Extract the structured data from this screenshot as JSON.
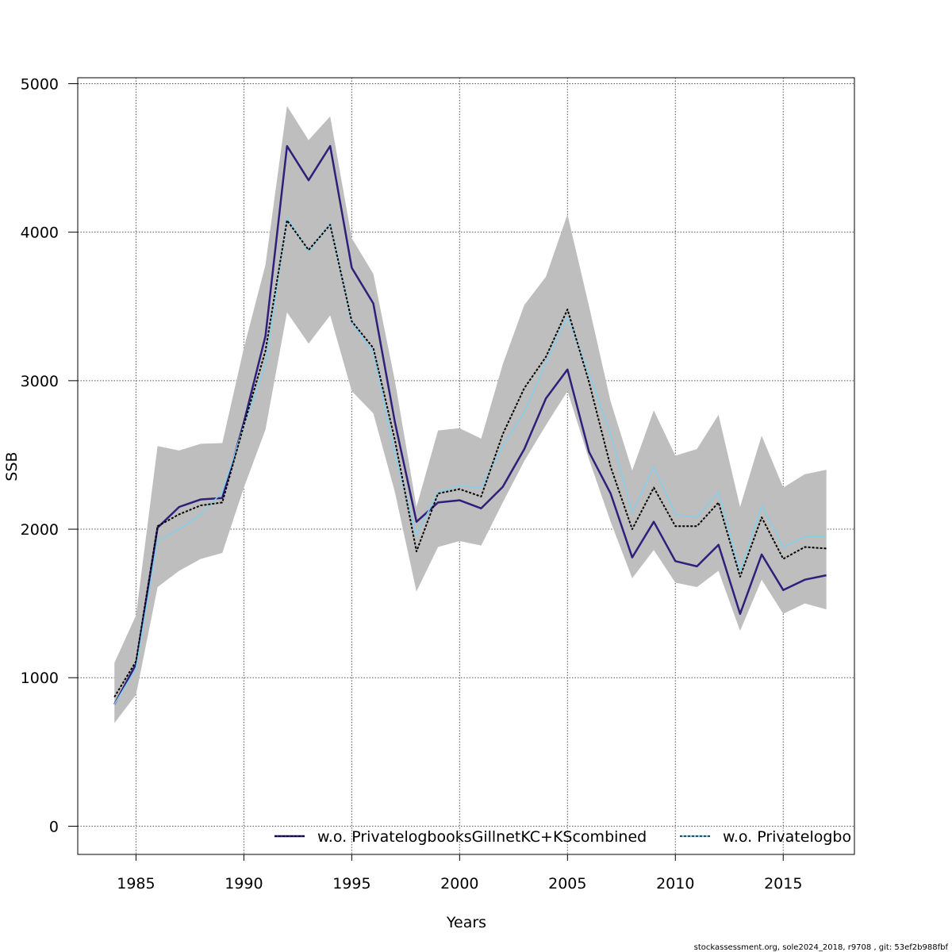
{
  "chart_data": {
    "type": "line",
    "xlabel": "Years",
    "ylabel": "SSB",
    "xlim": [
      1982.3,
      2018.3
    ],
    "ylim": [
      -190,
      5040
    ],
    "x_ticks": [
      1985,
      1990,
      1995,
      2000,
      2005,
      2010,
      2015
    ],
    "y_ticks": [
      0,
      1000,
      2000,
      3000,
      4000,
      5000
    ],
    "grid": true,
    "legend_position": "bottom-right",
    "x": [
      1984,
      1985,
      1986,
      1987,
      1988,
      1989,
      1990,
      1991,
      1992,
      1993,
      1994,
      1995,
      1996,
      1997,
      1998,
      1999,
      2000,
      2001,
      2002,
      2003,
      2004,
      2005,
      2006,
      2007,
      2008,
      2009,
      2010,
      2011,
      2012,
      2013,
      2014,
      2015,
      2016,
      2017
    ],
    "band": {
      "color": "#bebebe",
      "lower": [
        695,
        885,
        1610,
        1720,
        1800,
        1840,
        2280,
        2670,
        3460,
        3250,
        3440,
        2930,
        2780,
        2250,
        1580,
        1880,
        1920,
        1890,
        2180,
        2460,
        2700,
        2930,
        2470,
        2050,
        1670,
        1860,
        1640,
        1610,
        1720,
        1315,
        1660,
        1430,
        1500,
        1460
      ],
      "upper": [
        1100,
        1420,
        2560,
        2530,
        2575,
        2580,
        3220,
        3780,
        4850,
        4620,
        4780,
        3960,
        3720,
        3000,
        2150,
        2665,
        2680,
        2610,
        3110,
        3510,
        3700,
        4120,
        3500,
        2860,
        2395,
        2800,
        2495,
        2540,
        2770,
        2150,
        2630,
        2280,
        2370,
        2400
      ]
    },
    "series": [
      {
        "name": "w.o. PrivatelogbooksGillnetKC+KScombined",
        "color": "#2e1f7a",
        "values": [
          820,
          1090,
          2010,
          2150,
          2200,
          2210,
          2720,
          3300,
          4580,
          4350,
          4580,
          3760,
          3520,
          2720,
          2050,
          2180,
          2195,
          2140,
          2285,
          2540,
          2880,
          3075,
          2520,
          2240,
          1810,
          2050,
          1785,
          1750,
          1895,
          1430,
          1830,
          1590,
          1660,
          1690
        ]
      },
      {
        "name": "w.o. Privatelogbo",
        "color": "#87ceeb",
        "values": [
          820,
          1060,
          1920,
          2000,
          2100,
          2250,
          2700,
          3100,
          4100,
          3870,
          4060,
          3390,
          3190,
          2500,
          1960,
          2250,
          2290,
          2280,
          2560,
          2790,
          3120,
          3430,
          3050,
          2640,
          2110,
          2420,
          2100,
          2080,
          2250,
          1720,
          2160,
          1880,
          1950,
          1950
        ]
      },
      {
        "name": "",
        "color": "#000000",
        "dashed": true,
        "values": [
          870,
          1110,
          2020,
          2100,
          2160,
          2180,
          2700,
          3200,
          4080,
          3880,
          4050,
          3400,
          3220,
          2600,
          1850,
          2240,
          2270,
          2220,
          2640,
          2950,
          3160,
          3480,
          2990,
          2420,
          2000,
          2280,
          2020,
          2020,
          2180,
          1680,
          2080,
          1800,
          1880,
          1870
        ]
      }
    ]
  },
  "footer": "stockassessment.org, sole2024_2018, r9708 , git: 53ef2b988fbf"
}
